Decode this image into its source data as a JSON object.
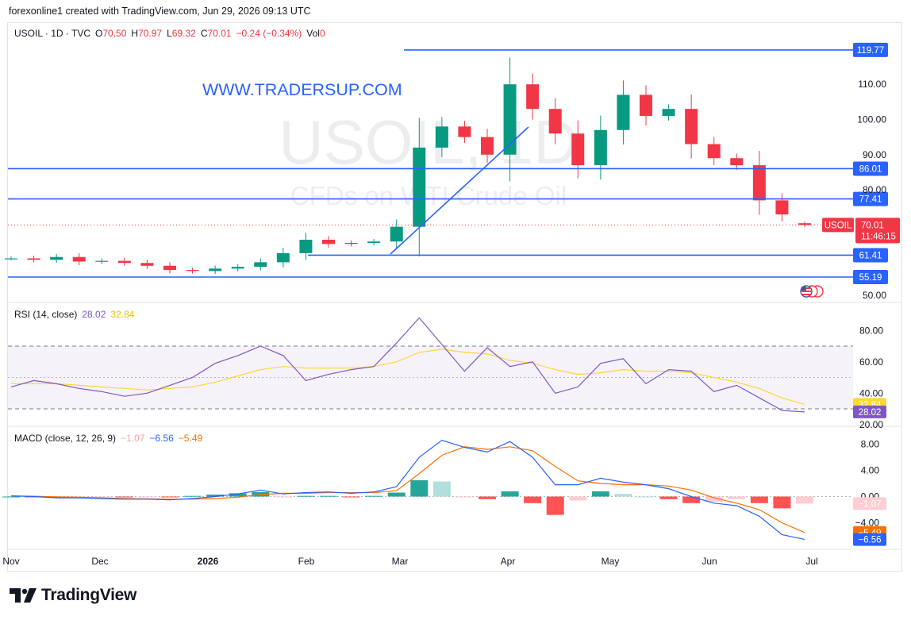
{
  "header": {
    "published": "forexonline1 created with TradingView.com, Jun 29, 2026 09:13 UTC"
  },
  "symbol_bar": {
    "symbol": "USOIL · 1D · TVC",
    "o_label": "O",
    "o": "70.50",
    "h_label": "H",
    "h": "70.97",
    "l_label": "L",
    "l": "69.32",
    "c_label": "C",
    "c": "70.01",
    "change": "−0.24 (−0.34%)",
    "vol_label": "Vol",
    "vol": "0"
  },
  "watermark": {
    "symbol": "USOIL, 1D",
    "description": "CFDs on WTI Crude Oil"
  },
  "promo": {
    "text": "WWW.TRADERSUP.COM"
  },
  "colors": {
    "up": "#089981",
    "down": "#f23645",
    "level": "#2962ff",
    "rsi": "#7e57c2",
    "rsi_ma": "#fdd835",
    "macd": "#2962ff",
    "signal": "#ff6d00"
  },
  "price_axis": {
    "ticks": [
      "110.00",
      "100.00",
      "90.00",
      "80.00",
      "50.00"
    ]
  },
  "levels": [
    "119.77",
    "86.01",
    "77.41",
    "61.41",
    "55.19"
  ],
  "current_price": {
    "symbol": "USOIL",
    "price": "70.01",
    "countdown": "11:46:15"
  },
  "time_axis": {
    "labels": [
      "Nov",
      "Dec",
      "2026",
      "Feb",
      "Mar",
      "Apr",
      "May",
      "Jun",
      "Jul"
    ]
  },
  "rsi": {
    "legend_title": "RSI (14, close)",
    "value": "28.02",
    "ma_value": "32.84",
    "ticks": [
      "80.00",
      "60.00",
      "40.00",
      "20.00"
    ],
    "upper_band": 70,
    "middle_band": 50,
    "lower_band": 30
  },
  "macd": {
    "legend_title": "MACD (close, 12, 26, 9)",
    "histogram": "−1.07",
    "macd_value": "−6.56",
    "signal_value": "−5.49",
    "ticks": [
      "8.00",
      "4.00",
      "0.00",
      "−4.00"
    ]
  },
  "footer": {
    "brand": "TradingView"
  },
  "chart_data": [
    {
      "type": "candlestick",
      "title": "USOIL · 1D · TVC",
      "x": [
        "2025-10-27",
        "2025-11-03",
        "2025-11-10",
        "2025-11-17",
        "2025-11-24",
        "2025-12-01",
        "2025-12-08",
        "2025-12-15",
        "2025-12-22",
        "2025-12-29",
        "2026-01-05",
        "2026-01-12",
        "2026-01-19",
        "2026-01-26",
        "2026-02-02",
        "2026-02-09",
        "2026-02-16",
        "2026-02-23",
        "2026-03-02",
        "2026-03-09",
        "2026-03-16",
        "2026-03-23",
        "2026-03-30",
        "2026-04-06",
        "2026-04-13",
        "2026-04-20",
        "2026-04-27",
        "2026-05-04",
        "2026-05-11",
        "2026-05-18",
        "2026-05-25",
        "2026-06-01",
        "2026-06-08",
        "2026-06-15",
        "2026-06-22",
        "2026-06-29"
      ],
      "close": [
        60.5,
        60.1,
        60.9,
        59.6,
        59.8,
        59.2,
        58.4,
        57.2,
        56.9,
        57.6,
        58.1,
        59.4,
        62.0,
        65.8,
        64.6,
        64.9,
        65.3,
        69.5,
        92.0,
        98.0,
        95.0,
        90.0,
        110.0,
        103.0,
        96.0,
        87.0,
        97.0,
        107.0,
        101.0,
        103.0,
        93.0,
        89.0,
        87.0,
        77.0,
        73.0,
        70.01
      ],
      "ylim": [
        50,
        122
      ],
      "levels": [
        119.77,
        86.01,
        77.41,
        61.41,
        55.19
      ],
      "last": {
        "open": 70.5,
        "high": 70.97,
        "low": 69.32,
        "close": 70.01,
        "change": -0.24,
        "change_pct": -0.34
      }
    },
    {
      "type": "line",
      "title": "RSI (14, close)",
      "series": [
        {
          "values": [
            44,
            48,
            46,
            43,
            41,
            38,
            40,
            45,
            50,
            59,
            64,
            70,
            64,
            48,
            52,
            55,
            57,
            72,
            88,
            71,
            54,
            69,
            57,
            60,
            40,
            44,
            59,
            62,
            46,
            55,
            54,
            41,
            45,
            37,
            29,
            28.02
          ]
        },
        {
          "values": [
            46,
            46,
            46,
            45,
            44,
            43,
            42,
            43,
            44,
            47,
            51,
            55,
            57,
            56,
            56,
            56,
            57,
            60,
            66,
            68,
            66,
            65,
            61,
            59,
            55,
            52,
            53,
            55,
            54,
            54,
            53,
            50,
            47,
            43,
            37,
            32.84
          ]
        }
      ],
      "ylim": [
        18,
        92
      ],
      "bands": [
        70,
        50,
        30
      ]
    },
    {
      "type": "line",
      "title": "MACD (close, 12, 26, 9)",
      "series": [
        {
          "values": [
            0.1,
            0.0,
            -0.2,
            -0.2,
            -0.3,
            -0.4,
            -0.4,
            -0.5,
            -0.3,
            0.0,
            0.4,
            1.0,
            0.4,
            0.6,
            0.7,
            0.5,
            0.7,
            1.5,
            6.0,
            8.6,
            7.5,
            6.8,
            8.4,
            6.0,
            1.8,
            1.8,
            2.8,
            2.2,
            1.8,
            1.2,
            0.0,
            -1.0,
            -1.4,
            -3.0,
            -5.8,
            -6.56
          ]
        },
        {
          "values": [
            0.1,
            0.05,
            -0.05,
            -0.1,
            -0.2,
            -0.3,
            -0.35,
            -0.4,
            -0.4,
            -0.3,
            -0.1,
            0.3,
            0.5,
            0.5,
            0.6,
            0.6,
            0.6,
            0.9,
            3.5,
            6.3,
            7.6,
            7.2,
            7.6,
            7.0,
            4.6,
            2.4,
            2.0,
            1.8,
            1.8,
            1.6,
            1.0,
            -0.2,
            -1.0,
            -2.0,
            -4.0,
            -5.49
          ]
        }
      ],
      "ylim": [
        -6.9,
        9.1
      ]
    }
  ]
}
